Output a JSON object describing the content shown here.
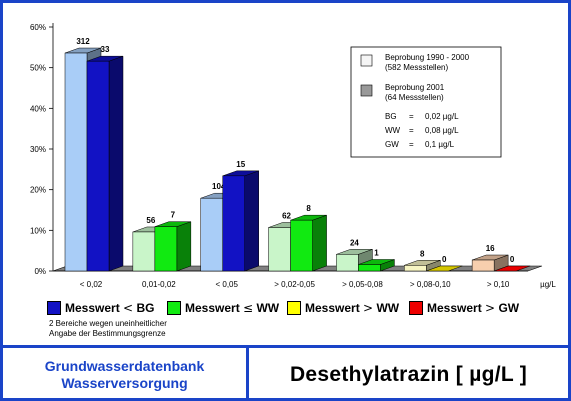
{
  "chart_data": {
    "type": "bar",
    "categories": [
      "< 0,02",
      "0,01-0,02",
      "< 0,05",
      "> 0,02-0,05",
      "> 0,05-0,08",
      "> 0,08-0,10",
      "> 0,10"
    ],
    "x_unit": "µg/L",
    "y_ticks": [
      "0%",
      "10%",
      "20%",
      "30%",
      "40%",
      "50%",
      "60%"
    ],
    "ylim": [
      0,
      60
    ],
    "series": [
      {
        "name": "Beprobung 1990 - 2000",
        "sub": "(582 Messstellen)",
        "values": [
          53.6,
          9.6,
          17.9,
          10.7,
          4.1,
          1.4,
          2.7
        ],
        "labels": [
          "312",
          "56",
          "104",
          "62",
          "24",
          "8",
          "16"
        ]
      },
      {
        "name": "Beprobung 2001",
        "sub": "(64 Messstellen)",
        "values": [
          51.6,
          10.9,
          23.4,
          12.5,
          1.6,
          0,
          0
        ],
        "labels": [
          "33",
          "7",
          "15",
          "8",
          "1",
          "0",
          "0"
        ]
      }
    ],
    "front_colors": [
      [
        "#a9cdf7",
        "#1212c4"
      ],
      [
        "#c9f5c9",
        "#11ea11"
      ],
      [
        "#a9cdf7",
        "#1212c4"
      ],
      [
        "#c9f5c9",
        "#11ea11"
      ],
      [
        "#c9f5c9",
        "#11ea11"
      ],
      [
        "#f7f5c2",
        "#d4c600"
      ],
      [
        "#f7cfae",
        "#e80000"
      ]
    ],
    "legend_box": {
      "entry_1990": "Beprobung 1990 - 2000",
      "entry_1990_sub": "(582 Messstellen)",
      "entry_2001": "Beprobung 2001",
      "entry_2001_sub": "(64 Messstellen)",
      "defs": [
        {
          "k": "BG",
          "eq": "=",
          "v": "0,02 µg/L"
        },
        {
          "k": "WW",
          "eq": "=",
          "v": "0,08 µg/L"
        },
        {
          "k": "GW",
          "eq": "=",
          "v": "0,1 µg/L"
        }
      ]
    }
  },
  "legend": [
    {
      "label_a": "Messwert",
      "sym": "<",
      "label_b": "BG",
      "color": "#1212c4"
    },
    {
      "label_a": "Messwert",
      "sym": "≤",
      "label_b": "WW",
      "color": "#11ea11"
    },
    {
      "label_a": "Messwert",
      "sym": ">",
      "label_b": "WW",
      "color": "#ffff00"
    },
    {
      "label_a": "Messwert",
      "sym": ">",
      "label_b": "GW",
      "color": "#ee0000"
    }
  ],
  "footnote": [
    "2 Bereiche wegen uneinheitlicher",
    "Angabe der Bestimmungsgrenze"
  ],
  "footer": {
    "org_line1": "Grundwasserdatenbank",
    "org_line2": "Wasserversorgung",
    "title": "Desethylatrazin [ µg/L ]"
  }
}
